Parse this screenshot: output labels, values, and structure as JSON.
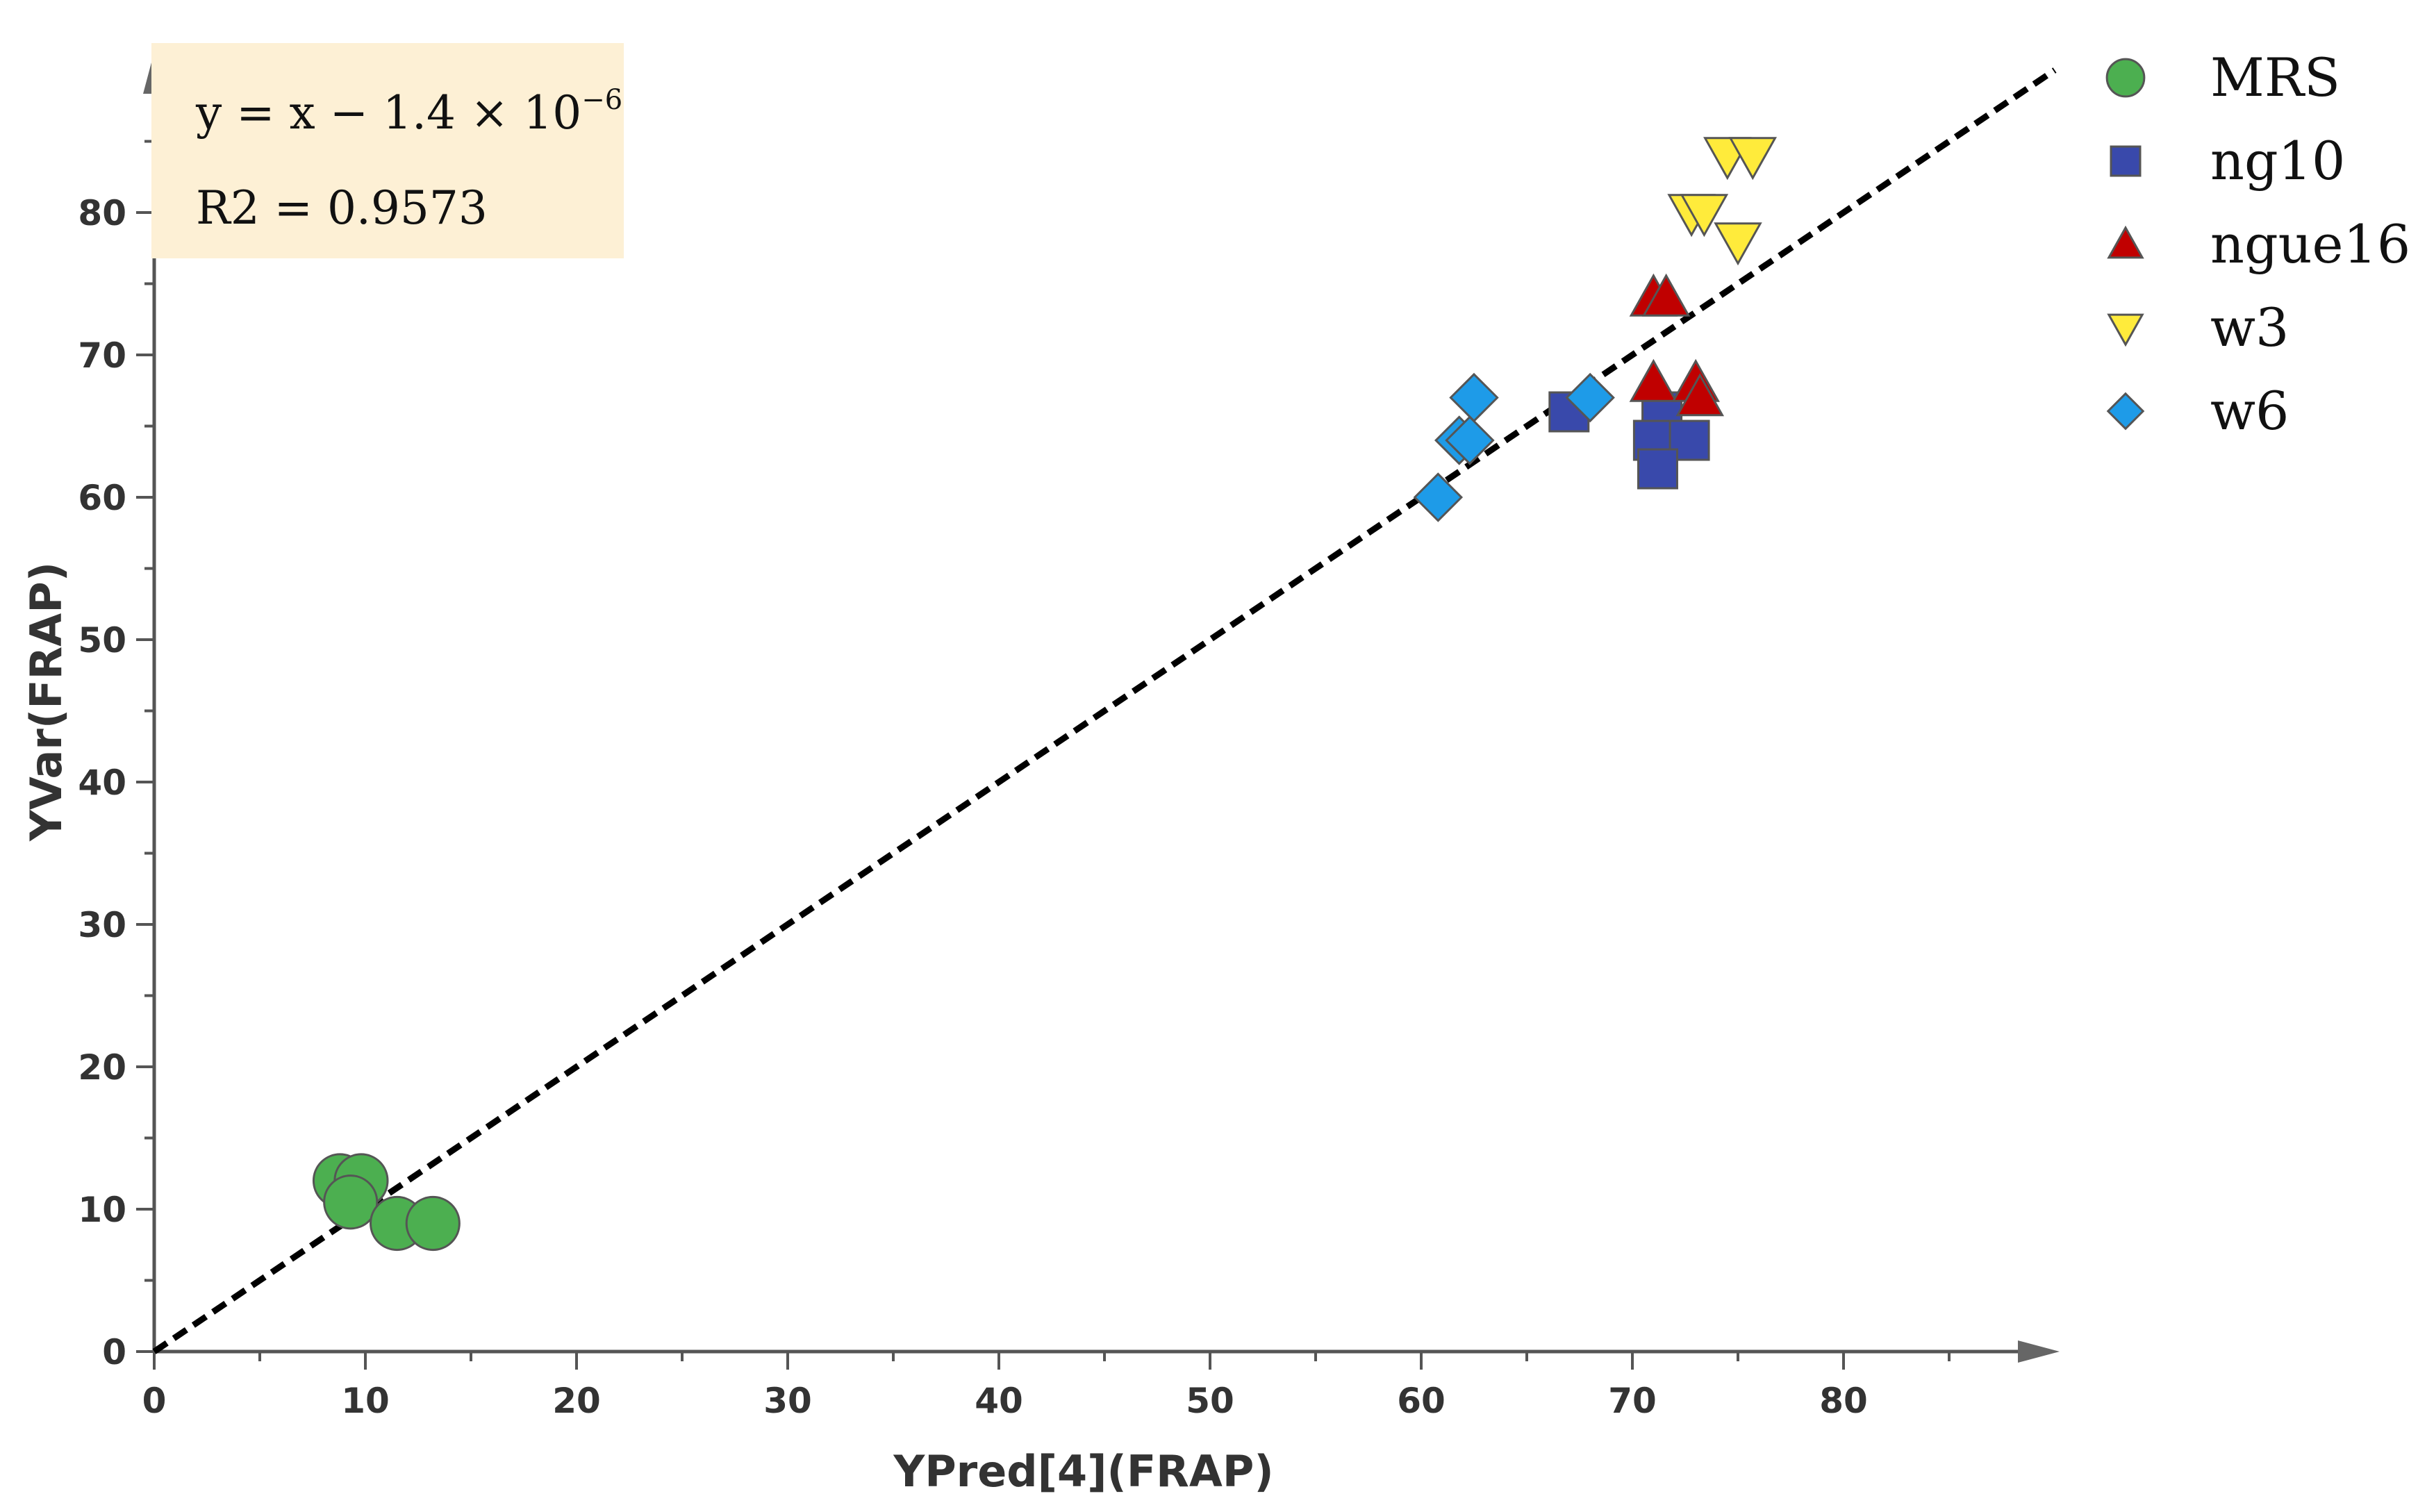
{
  "chart_data": {
    "type": "scatter",
    "title": "",
    "xlabel": "YPred[4](FRAP)",
    "ylabel": "YVar(FRAP)",
    "xlim": [
      0,
      90
    ],
    "ylim": [
      0,
      90
    ],
    "xticks": [
      0,
      10,
      20,
      30,
      40,
      50,
      60,
      70,
      80
    ],
    "yticks": [
      0,
      10,
      20,
      30,
      40,
      50,
      60,
      70,
      80
    ],
    "grid": false,
    "legend_position": "right",
    "annotation": {
      "equation_prefix": "y = x − 1.4 × 10",
      "equation_exponent": "−6",
      "r2": "R2 = 0.9573"
    },
    "fit_line": {
      "x": [
        0,
        90
      ],
      "y": [
        0,
        90
      ],
      "style": "dashed"
    },
    "series": [
      {
        "name": "MRS",
        "marker": "circle",
        "color": "#4caf50",
        "points": [
          [
            8.8,
            12
          ],
          [
            9.8,
            12
          ],
          [
            9.3,
            10.5
          ],
          [
            11.5,
            9
          ],
          [
            13.2,
            9
          ]
        ]
      },
      {
        "name": "ng10",
        "marker": "square",
        "color": "#3949ab",
        "points": [
          [
            67,
            66
          ],
          [
            71.4,
            66
          ],
          [
            71,
            64
          ],
          [
            72.7,
            64
          ],
          [
            71.2,
            62
          ]
        ]
      },
      {
        "name": "ngue16",
        "marker": "triangle-up",
        "color": "#c00000",
        "points": [
          [
            71,
            74
          ],
          [
            71.6,
            74
          ],
          [
            71,
            68
          ],
          [
            73,
            68
          ],
          [
            73.2,
            67
          ]
        ]
      },
      {
        "name": "w3",
        "marker": "triangle-down",
        "color": "#ffeb3b",
        "points": [
          [
            74.5,
            84
          ],
          [
            75.7,
            84
          ],
          [
            72.8,
            80
          ],
          [
            73.4,
            80
          ],
          [
            75,
            78
          ]
        ]
      },
      {
        "name": "w6",
        "marker": "diamond",
        "color": "#1e9be8",
        "points": [
          [
            62.5,
            67
          ],
          [
            68,
            67
          ],
          [
            61.8,
            64
          ],
          [
            62.3,
            64
          ],
          [
            60.8,
            60
          ]
        ]
      }
    ]
  }
}
